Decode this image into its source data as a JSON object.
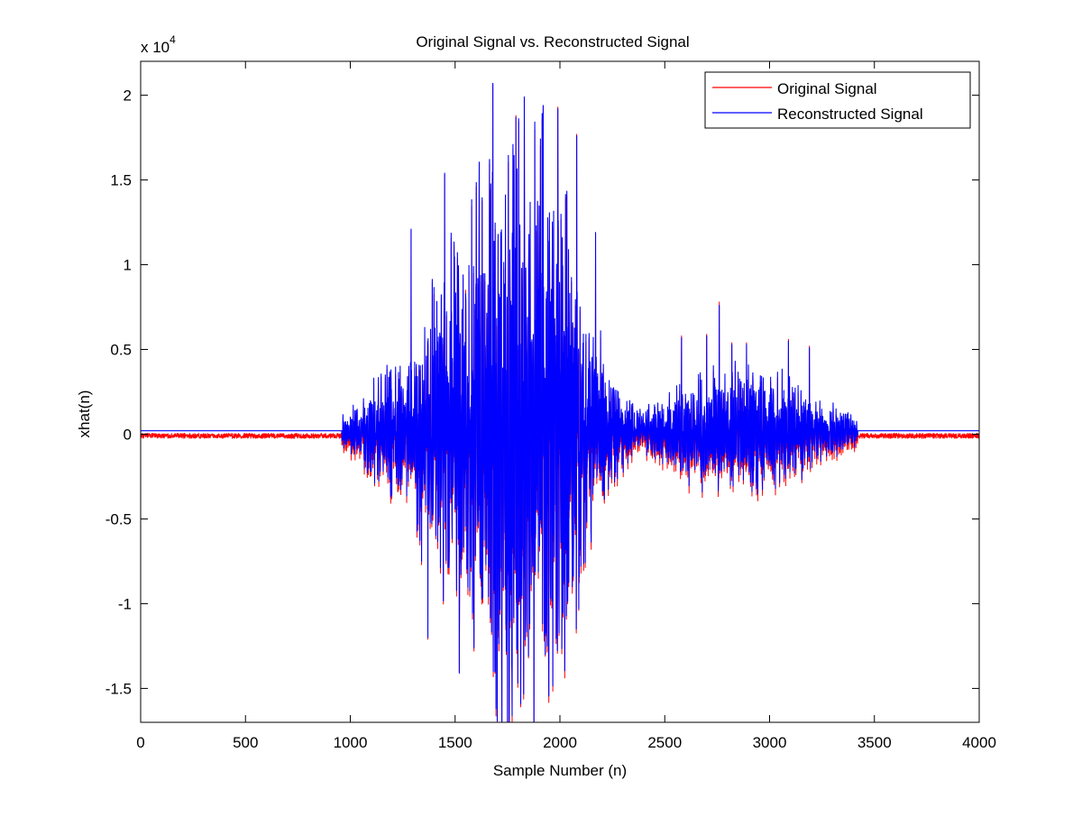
{
  "chart_data": {
    "type": "line",
    "title": "Original Signal vs. Reconstructed Signal",
    "xlabel": "Sample Number (n)",
    "ylabel": "xhat(n)",
    "y_multiplier": "x 10",
    "y_multiplier_exponent": "4",
    "xlim": [
      0,
      4000
    ],
    "ylim": [
      -17000,
      22000
    ],
    "x_ticks": [
      0,
      500,
      1000,
      1500,
      2000,
      2500,
      3000,
      3500,
      4000
    ],
    "x_tick_labels": [
      "0",
      "500",
      "1000",
      "1500",
      "2000",
      "2500",
      "3000",
      "3500",
      "4000"
    ],
    "y_ticks": [
      -15000,
      -10000,
      -5000,
      0,
      5000,
      10000,
      15000,
      20000
    ],
    "y_tick_labels": [
      "-1.5",
      "-1",
      "-0.5",
      "0",
      "0.5",
      "1",
      "1.5",
      "2"
    ],
    "grid": false,
    "legend_position": "top-right",
    "series": [
      {
        "name": "Original Signal",
        "color": "#ff0000",
        "baseline": -100,
        "noise": 150,
        "bursts": [
          {
            "center": 1050,
            "width": 120,
            "amplitude": 1300
          },
          {
            "center": 1180,
            "width": 100,
            "amplitude": 1800
          },
          {
            "center": 1650,
            "width": 350,
            "amplitude": 16000
          },
          {
            "center": 1950,
            "width": 250,
            "amplitude": 12000
          },
          {
            "center": 2700,
            "width": 300,
            "amplitude": 3500
          },
          {
            "center": 3050,
            "width": 250,
            "amplitude": 3200
          },
          {
            "center": 3350,
            "width": 100,
            "amplitude": 900
          }
        ],
        "peaks": [
          {
            "x": 1290,
            "y": 12000
          },
          {
            "x": 1340,
            "y": -7700
          },
          {
            "x": 1370,
            "y": -12100
          },
          {
            "x": 1450,
            "y": 15300
          },
          {
            "x": 1520,
            "y": -14000
          },
          {
            "x": 1550,
            "y": 8500
          },
          {
            "x": 1590,
            "y": -12800
          },
          {
            "x": 1680,
            "y": 20600
          },
          {
            "x": 1690,
            "y": -14100
          },
          {
            "x": 1770,
            "y": -13700
          },
          {
            "x": 1790,
            "y": 18800
          },
          {
            "x": 1830,
            "y": 19800
          },
          {
            "x": 1850,
            "y": -13200
          },
          {
            "x": 1920,
            "y": 19300
          },
          {
            "x": 1930,
            "y": -13100
          },
          {
            "x": 1990,
            "y": 19300
          },
          {
            "x": 2010,
            "y": -9300
          },
          {
            "x": 2080,
            "y": 17700
          },
          {
            "x": 2090,
            "y": -10400
          },
          {
            "x": 2170,
            "y": 11800
          },
          {
            "x": 2580,
            "y": 5800
          },
          {
            "x": 2700,
            "y": 5900
          },
          {
            "x": 2760,
            "y": 7800
          },
          {
            "x": 2820,
            "y": 5400
          },
          {
            "x": 2890,
            "y": 5400
          },
          {
            "x": 3090,
            "y": 5600
          },
          {
            "x": 3190,
            "y": 5200
          }
        ]
      },
      {
        "name": "Reconstructed Signal",
        "color": "#0000ff",
        "baseline": 200,
        "noise": 0,
        "bursts": [
          {
            "center": 1050,
            "width": 120,
            "amplitude": 1300
          },
          {
            "center": 1180,
            "width": 100,
            "amplitude": 1800
          },
          {
            "center": 1650,
            "width": 350,
            "amplitude": 16000
          },
          {
            "center": 1950,
            "width": 250,
            "amplitude": 12000
          },
          {
            "center": 2700,
            "width": 300,
            "amplitude": 3500
          },
          {
            "center": 3050,
            "width": 250,
            "amplitude": 3200
          },
          {
            "center": 3350,
            "width": 100,
            "amplitude": 900
          }
        ],
        "peaks": [
          {
            "x": 1290,
            "y": 12100
          },
          {
            "x": 1340,
            "y": -7500
          },
          {
            "x": 1370,
            "y": -12000
          },
          {
            "x": 1450,
            "y": 15400
          },
          {
            "x": 1520,
            "y": -14100
          },
          {
            "x": 1550,
            "y": 8300
          },
          {
            "x": 1590,
            "y": -12600
          },
          {
            "x": 1680,
            "y": 20700
          },
          {
            "x": 1690,
            "y": -14000
          },
          {
            "x": 1770,
            "y": -13600
          },
          {
            "x": 1790,
            "y": 18700
          },
          {
            "x": 1830,
            "y": 19900
          },
          {
            "x": 1850,
            "y": -13100
          },
          {
            "x": 1920,
            "y": 19400
          },
          {
            "x": 1930,
            "y": -13000
          },
          {
            "x": 1990,
            "y": 19200
          },
          {
            "x": 2010,
            "y": -9200
          },
          {
            "x": 2080,
            "y": 17600
          },
          {
            "x": 2090,
            "y": -10300
          },
          {
            "x": 2170,
            "y": 11900
          },
          {
            "x": 2580,
            "y": 5700
          },
          {
            "x": 2700,
            "y": 5800
          },
          {
            "x": 2760,
            "y": 7600
          },
          {
            "x": 2820,
            "y": 5300
          },
          {
            "x": 2890,
            "y": 5300
          },
          {
            "x": 3090,
            "y": 5500
          },
          {
            "x": 3190,
            "y": 5100
          }
        ]
      }
    ]
  }
}
